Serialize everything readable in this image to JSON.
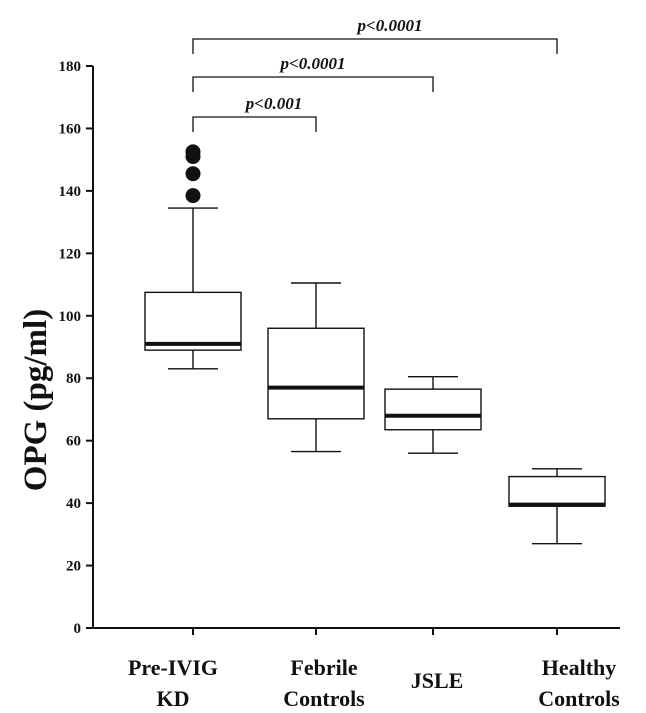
{
  "chart_data": {
    "type": "box",
    "title": "",
    "ylabel": "OPG (pg/ml)",
    "xlabel": "",
    "ylim": [
      0,
      180
    ],
    "yticks": [
      0,
      20,
      40,
      60,
      80,
      100,
      120,
      140,
      160,
      180
    ],
    "categories": [
      {
        "lines": [
          "Pre-IVIG",
          "KD"
        ]
      },
      {
        "lines": [
          "Febrile",
          "Controls"
        ]
      },
      {
        "lines": [
          "JSLE"
        ]
      },
      {
        "lines": [
          "Healthy",
          "Controls"
        ]
      }
    ],
    "boxes": [
      {
        "whisker_low": 83,
        "q1": 89,
        "median": 91,
        "q3": 107.5,
        "whisker_high": 134.5,
        "outliers": [
          138.5,
          145.5,
          151,
          152.5
        ]
      },
      {
        "whisker_low": 56.5,
        "q1": 67,
        "median": 77,
        "q3": 96,
        "whisker_high": 110.5,
        "outliers": []
      },
      {
        "whisker_low": 56,
        "q1": 63.5,
        "median": 68,
        "q3": 76.5,
        "whisker_high": 80.5,
        "outliers": []
      },
      {
        "whisker_low": 27,
        "q1": 39,
        "median": 39.5,
        "q3": 48.5,
        "whisker_high": 51,
        "outliers": []
      }
    ],
    "comparisons": [
      {
        "from": 0,
        "to": 1,
        "label": "p<0.001"
      },
      {
        "from": 0,
        "to": 2,
        "label": "p<0.0001"
      },
      {
        "from": 0,
        "to": 3,
        "label": "p<0.0001"
      }
    ],
    "grid": false,
    "legend": "none"
  }
}
